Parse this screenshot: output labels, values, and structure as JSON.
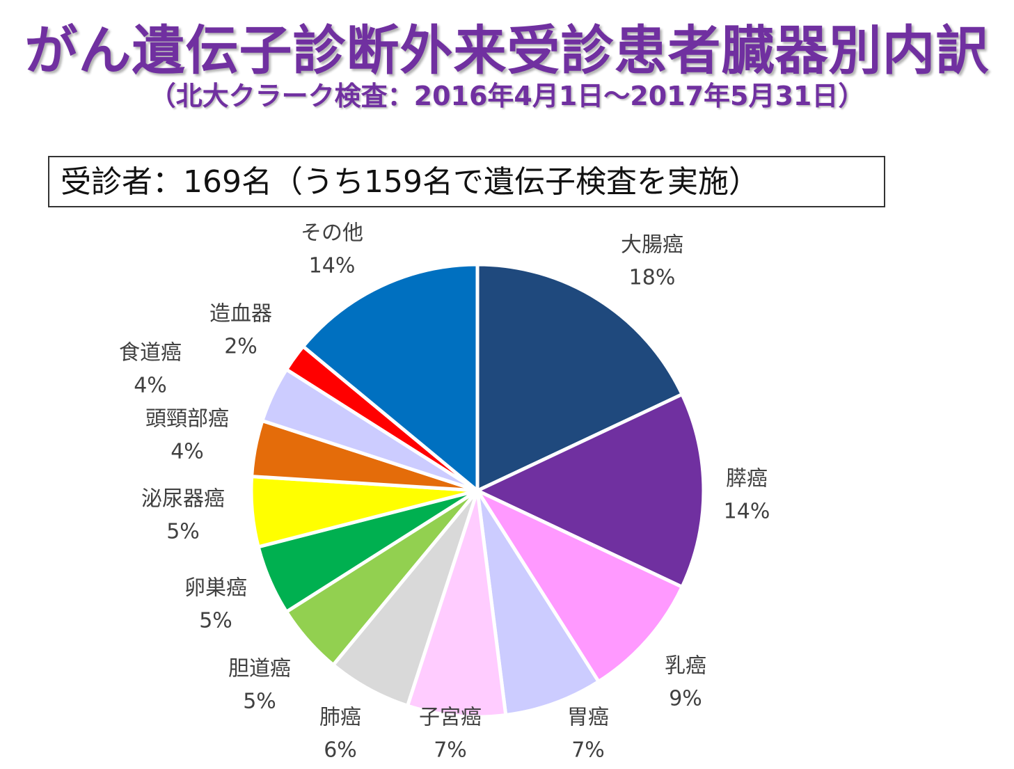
{
  "title": "がん遺伝子診断外来受診患者臓器別内訳",
  "subtitle": "（北大クラーク検査：2016年4月1日～2017年5月31日）",
  "summary": "受診者：169名（うち159名で遺伝子検査を実施）",
  "chart_data": {
    "type": "pie",
    "title": "",
    "start": "12 o'clock",
    "direction": "clockwise",
    "slices": [
      {
        "name": "大腸癌",
        "value": 18,
        "percent_label": "18%",
        "color": "#1f497d"
      },
      {
        "name": "膵癌",
        "value": 14,
        "percent_label": "14%",
        "color": "#7030a0"
      },
      {
        "name": "乳癌",
        "value": 9,
        "percent_label": "9%",
        "color": "#ff99ff"
      },
      {
        "name": "胃癌",
        "value": 7,
        "percent_label": "7%",
        "color": "#ccccff"
      },
      {
        "name": "子宮癌",
        "value": 7,
        "percent_label": "7%",
        "color": "#ffccff"
      },
      {
        "name": "肺癌",
        "value": 6,
        "percent_label": "6%",
        "color": "#d9d9d9"
      },
      {
        "name": "胆道癌",
        "value": 5,
        "percent_label": "5%",
        "color": "#92d050"
      },
      {
        "name": "卵巣癌",
        "value": 5,
        "percent_label": "5%",
        "color": "#00b050"
      },
      {
        "name": "泌尿器癌",
        "value": 5,
        "percent_label": "5%",
        "color": "#ffff00"
      },
      {
        "name": "頭頸部癌",
        "value": 4,
        "percent_label": "4%",
        "color": "#e46c0a"
      },
      {
        "name": "食道癌",
        "value": 4,
        "percent_label": "4%",
        "color": "#ccccff"
      },
      {
        "name": "造血器",
        "value": 2,
        "percent_label": "2%",
        "color": "#ff0000"
      },
      {
        "name": "その他",
        "value": 14,
        "percent_label": "14%",
        "color": "#0070c0"
      }
    ]
  }
}
